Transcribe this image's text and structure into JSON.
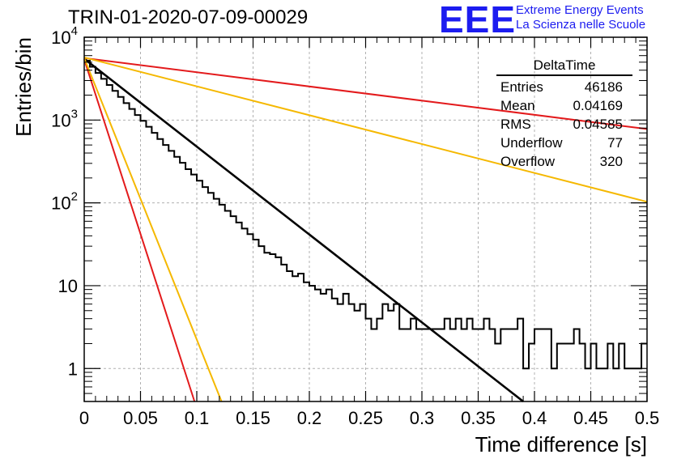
{
  "title": "TRIN-01-2020-07-09-00029",
  "logo": {
    "mark": "EEE",
    "line1": "Extreme Energy Events",
    "line2": "La Scienza nelle Scuole",
    "color": "#1c1cf0"
  },
  "stats": {
    "title": "DeltaTime",
    "rows": [
      {
        "label": "Entries",
        "value": "46186"
      },
      {
        "label": "Mean",
        "value": "0.04169"
      },
      {
        "label": "RMS",
        "value": "0.04585"
      },
      {
        "label": "Underflow",
        "value": "77"
      },
      {
        "label": "Overflow",
        "value": "320"
      }
    ]
  },
  "chart_data": {
    "type": "line",
    "xlabel": "Time difference [s]",
    "ylabel": "Entries/bin",
    "xlim": [
      0,
      0.5
    ],
    "ylim": [
      0.4,
      10000
    ],
    "yscale": "log",
    "grid": true,
    "xticks": [
      "0",
      "0.05",
      "0.1",
      "0.15",
      "0.2",
      "0.25",
      "0.3",
      "0.35",
      "0.4",
      "0.45",
      "0.5"
    ],
    "yticks": [
      {
        "value": 1,
        "label": "1"
      },
      {
        "value": 10,
        "label": "10"
      },
      {
        "value": 100,
        "label": "10",
        "exp": "2"
      },
      {
        "value": 1000,
        "label": "10",
        "exp": "3"
      },
      {
        "value": 10000,
        "label": "10",
        "exp": "4"
      }
    ],
    "histogram": {
      "color": "#000000",
      "bin_width": 0.005,
      "x_start": 0,
      "values": [
        5200,
        4400,
        3700,
        3150,
        2650,
        2250,
        1900,
        1600,
        1360,
        1150,
        980,
        830,
        700,
        590,
        500,
        425,
        360,
        305,
        255,
        220,
        185,
        155,
        132,
        112,
        95,
        80,
        69,
        58,
        49,
        42,
        36,
        30,
        25,
        24,
        22,
        18,
        15,
        13,
        14,
        11,
        10,
        9,
        8,
        9,
        7,
        6,
        8,
        6,
        5,
        6,
        4,
        3,
        4,
        6,
        5,
        6,
        3,
        3,
        4,
        3,
        3,
        3,
        3,
        3,
        4,
        3,
        4,
        3,
        4,
        3,
        3,
        4,
        3,
        2,
        3,
        3,
        3,
        4,
        1,
        2,
        3,
        3,
        3,
        1,
        2,
        2,
        2,
        3,
        2,
        1,
        2,
        1,
        1,
        2,
        1,
        2,
        1,
        1,
        1,
        2
      ]
    },
    "series": [
      {
        "color": "#000000",
        "x": [
          0,
          0.39
        ],
        "y": [
          5500,
          0.4
        ]
      },
      {
        "color": "#e31a1c",
        "x": [
          0,
          0.5
        ],
        "y": [
          5600,
          780
        ]
      },
      {
        "color": "#f5b800",
        "x": [
          0,
          0.5
        ],
        "y": [
          5700,
          103
        ]
      },
      {
        "color": "#e31a1c",
        "x": [
          0,
          0.098
        ],
        "y": [
          5400,
          0.4
        ]
      },
      {
        "color": "#f5b800",
        "x": [
          0,
          0.122
        ],
        "y": [
          5600,
          0.4
        ]
      }
    ]
  }
}
